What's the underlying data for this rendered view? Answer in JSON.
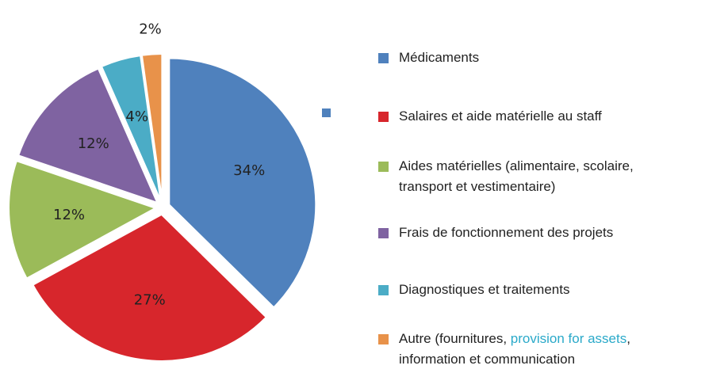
{
  "chart_data": {
    "type": "pie",
    "categories": [
      "Médicaments",
      "Salaires et aide matérielle au staff",
      "Aides matérielles (alimentaire, scolaire, transport et vestimentaire)",
      "Frais de fonctionnement des projets",
      "Diagnostiques et traitements",
      "Autre  (fournitures, provision for assets, information et communication"
    ],
    "values": [
      34,
      27,
      12,
      12,
      4,
      2
    ],
    "value_labels": [
      "34%",
      "27%",
      "12%",
      "12%",
      "4%",
      "2%"
    ],
    "colors": [
      "#4f81bd",
      "#d7262c",
      "#9bbb59",
      "#7f63a1",
      "#4bacc6",
      "#e8924a"
    ],
    "legend_highlight": {
      "index": 5,
      "text": "provision for assets",
      "color": "#2aa9c9"
    },
    "legend": "right"
  }
}
